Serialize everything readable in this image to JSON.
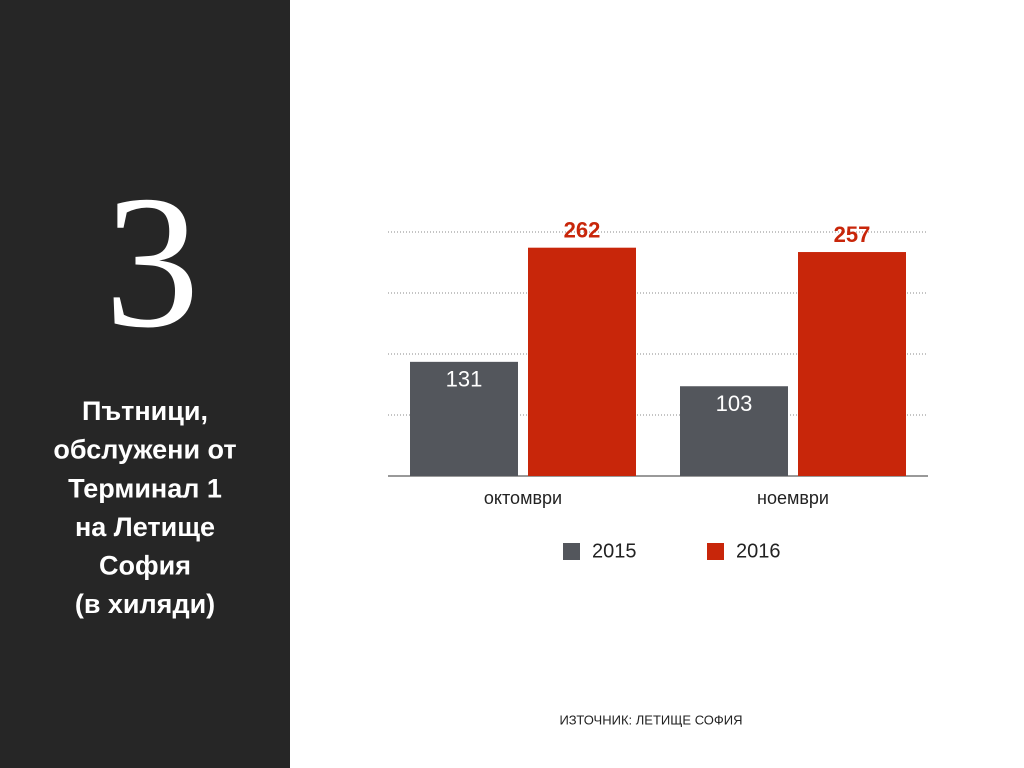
{
  "slide_number": 3,
  "chart_data": {
    "type": "bar",
    "title_lines": [
      "Пътници,",
      "обслужени от",
      "Терминал 1",
      "на Летище",
      "София",
      "(в хиляди)"
    ],
    "categories": [
      "октомври",
      "ноември"
    ],
    "series": [
      {
        "name": "2015",
        "color": "#53565c",
        "values": [
          131,
          103
        ]
      },
      {
        "name": "2016",
        "color": "#c8260a",
        "values": [
          262,
          257
        ]
      }
    ],
    "ylim": [
      0,
      280
    ],
    "yticks": [
      0,
      70,
      140,
      210,
      280
    ],
    "grid": true,
    "source": "ИЗТОЧНИК: ЛЕТИЩЕ СОФИЯ"
  }
}
